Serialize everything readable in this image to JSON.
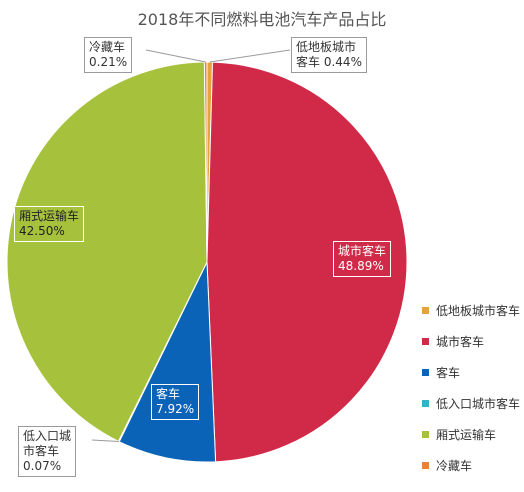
{
  "chart_data": {
    "type": "pie",
    "title": "2018年不同燃料电池汽车产品占比",
    "slices": [
      {
        "name": "低地板城市客车",
        "value": 0.44,
        "label_line1": "低地板城市",
        "label_line2": "客车",
        "value_label": "0.44%",
        "color": "#e6a23c"
      },
      {
        "name": "城市客车",
        "value": 48.89,
        "label_line1": "城市客车",
        "value_label": "48.89%",
        "color": "#d02a48"
      },
      {
        "name": "客车",
        "value": 7.92,
        "label_line1": "客车",
        "value_label": "7.92%",
        "color": "#0b63b8"
      },
      {
        "name": "低入口城市客车",
        "value": 0.07,
        "label_line1": "低入口城",
        "label_line2": "市客车",
        "value_label": "0.07%",
        "color": "#2fb5c8"
      },
      {
        "name": "厢式运输车",
        "value": 42.5,
        "label_line1": "厢式运输车",
        "value_label": "42.50%",
        "color": "#a6c23c"
      },
      {
        "name": "冷藏车",
        "value": 0.21,
        "label_line1": "冷藏车",
        "value_label": "0.21%",
        "color": "#e8833a"
      }
    ],
    "legend_position": "right-bottom"
  }
}
